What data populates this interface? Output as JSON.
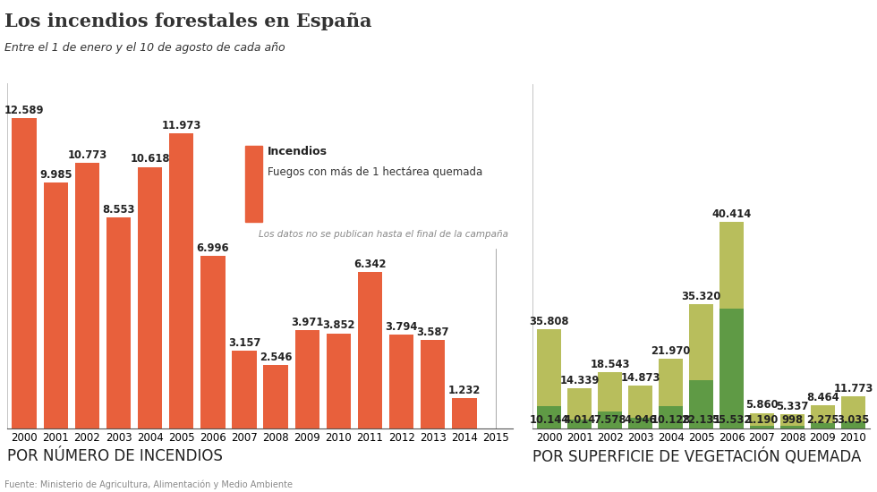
{
  "title": "Los incendios forestales en España",
  "subtitle": "Entre el 1 de enero y el 10 de agosto de cada año",
  "source": "Fuente: Ministerio de Agricultura, Alimentación y Medio Ambiente",
  "chart_data": [
    {
      "type": "bar",
      "x_label": "POR NÚMERO DE INCENDIOS",
      "categories": [
        "2000",
        "2001",
        "2002",
        "2003",
        "2004",
        "2005",
        "2006",
        "2007",
        "2008",
        "2009",
        "2010",
        "2011",
        "2012",
        "2013",
        "2014",
        "2015"
      ],
      "series": [
        {
          "name": "Incendios",
          "description": "Fuegos con más de 1 hectárea quemada",
          "color": "#e8603c",
          "values": [
            12589,
            9985,
            10773,
            8553,
            10618,
            11973,
            6996,
            3157,
            2546,
            3971,
            3852,
            6342,
            3794,
            3587,
            1232,
            null
          ],
          "value_labels": [
            "12.589",
            "9.985",
            "10.773",
            "8.553",
            "10.618",
            "11.973",
            "6.996",
            "3.157",
            "2.546",
            "3.971",
            "3.852",
            "6.342",
            "3.794",
            "3.587",
            "1.232",
            null
          ]
        }
      ],
      "annotations": [
        {
          "text": "Los datos no se publican hasta el final de la campaña",
          "category": "2015"
        }
      ],
      "ylim": [
        0,
        14000
      ],
      "yticks": [],
      "tick_labels": "x",
      "data_labels": true
    },
    {
      "type": "bar",
      "x_label": "POR SUPERFICIE DE VEGETACIÓN QUEMADA",
      "categories": [
        "2000",
        "2001",
        "2002",
        "2003",
        "2004",
        "2005",
        "2006",
        "2007",
        "2008",
        "2009",
        "2010"
      ],
      "stacked": true,
      "series": [
        {
          "color": "#5f9a45",
          "values": [
            10144,
            4014,
            7578,
            4946,
            10128,
            22131,
            55532,
            1190,
            998,
            2275,
            3035
          ],
          "value_labels": [
            "10.144",
            "4.014",
            "7.578",
            "4.946",
            "10.128",
            "22.131",
            "55.532",
            "1.190",
            "998",
            "2.275",
            "3.035"
          ]
        },
        {
          "color": "#b8be5c",
          "values": [
            35808,
            14339,
            18543,
            14873,
            21970,
            35320,
            40414,
            5860,
            5337,
            8464,
            11773
          ],
          "value_labels": [
            "35.808",
            "14.339",
            "18.543",
            "14.873",
            "21.970",
            "35.320",
            "40.414",
            "5.860",
            "5.337",
            "8.464",
            "11.773"
          ]
        }
      ],
      "ylim": [
        0,
        160000
      ],
      "yticks": [],
      "tick_labels": "x",
      "data_labels": true
    }
  ]
}
